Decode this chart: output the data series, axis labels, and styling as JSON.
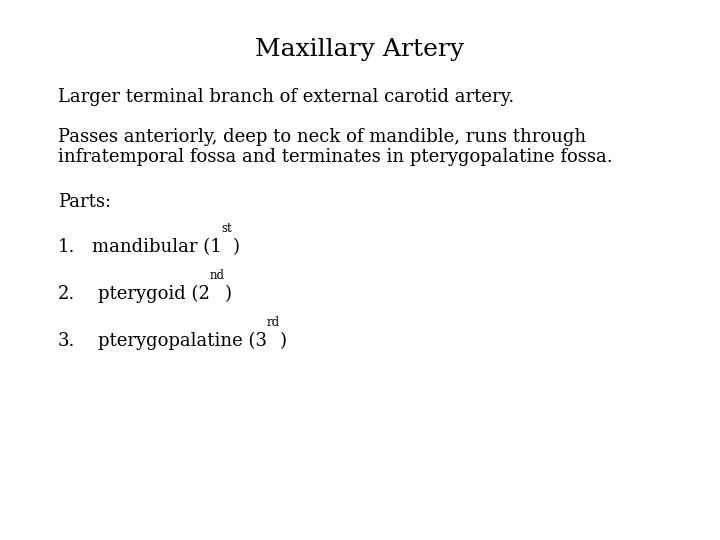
{
  "title": "Maxillary Artery",
  "title_fontsize": 18,
  "background_color": "#ffffff",
  "text_color": "#000000",
  "font_family": "DejaVu Serif",
  "body_fontsize": 13,
  "superscript_fontsize": 8.5,
  "line1": "Larger terminal branch of external carotid artery.",
  "line2a": "Passes anteriorly, deep to neck of mandible, runs through",
  "line2b": "infratemporal fossa and terminates in pterygopalatine fossa.",
  "line3": "Parts:",
  "item1_num": "1.",
  "item1_text": "mandibular (1",
  "item1_sup": "st",
  "item1_end": ")",
  "item2_num": "2.",
  "item2_text": "pterygoid (2",
  "item2_sup": "nd",
  "item2_end": ")",
  "item3_num": "3.",
  "item3_text": "pterygopalatine (3",
  "item3_sup": "rd",
  "item3_end": ")",
  "fig_width": 7.2,
  "fig_height": 5.4,
  "dpi": 100
}
